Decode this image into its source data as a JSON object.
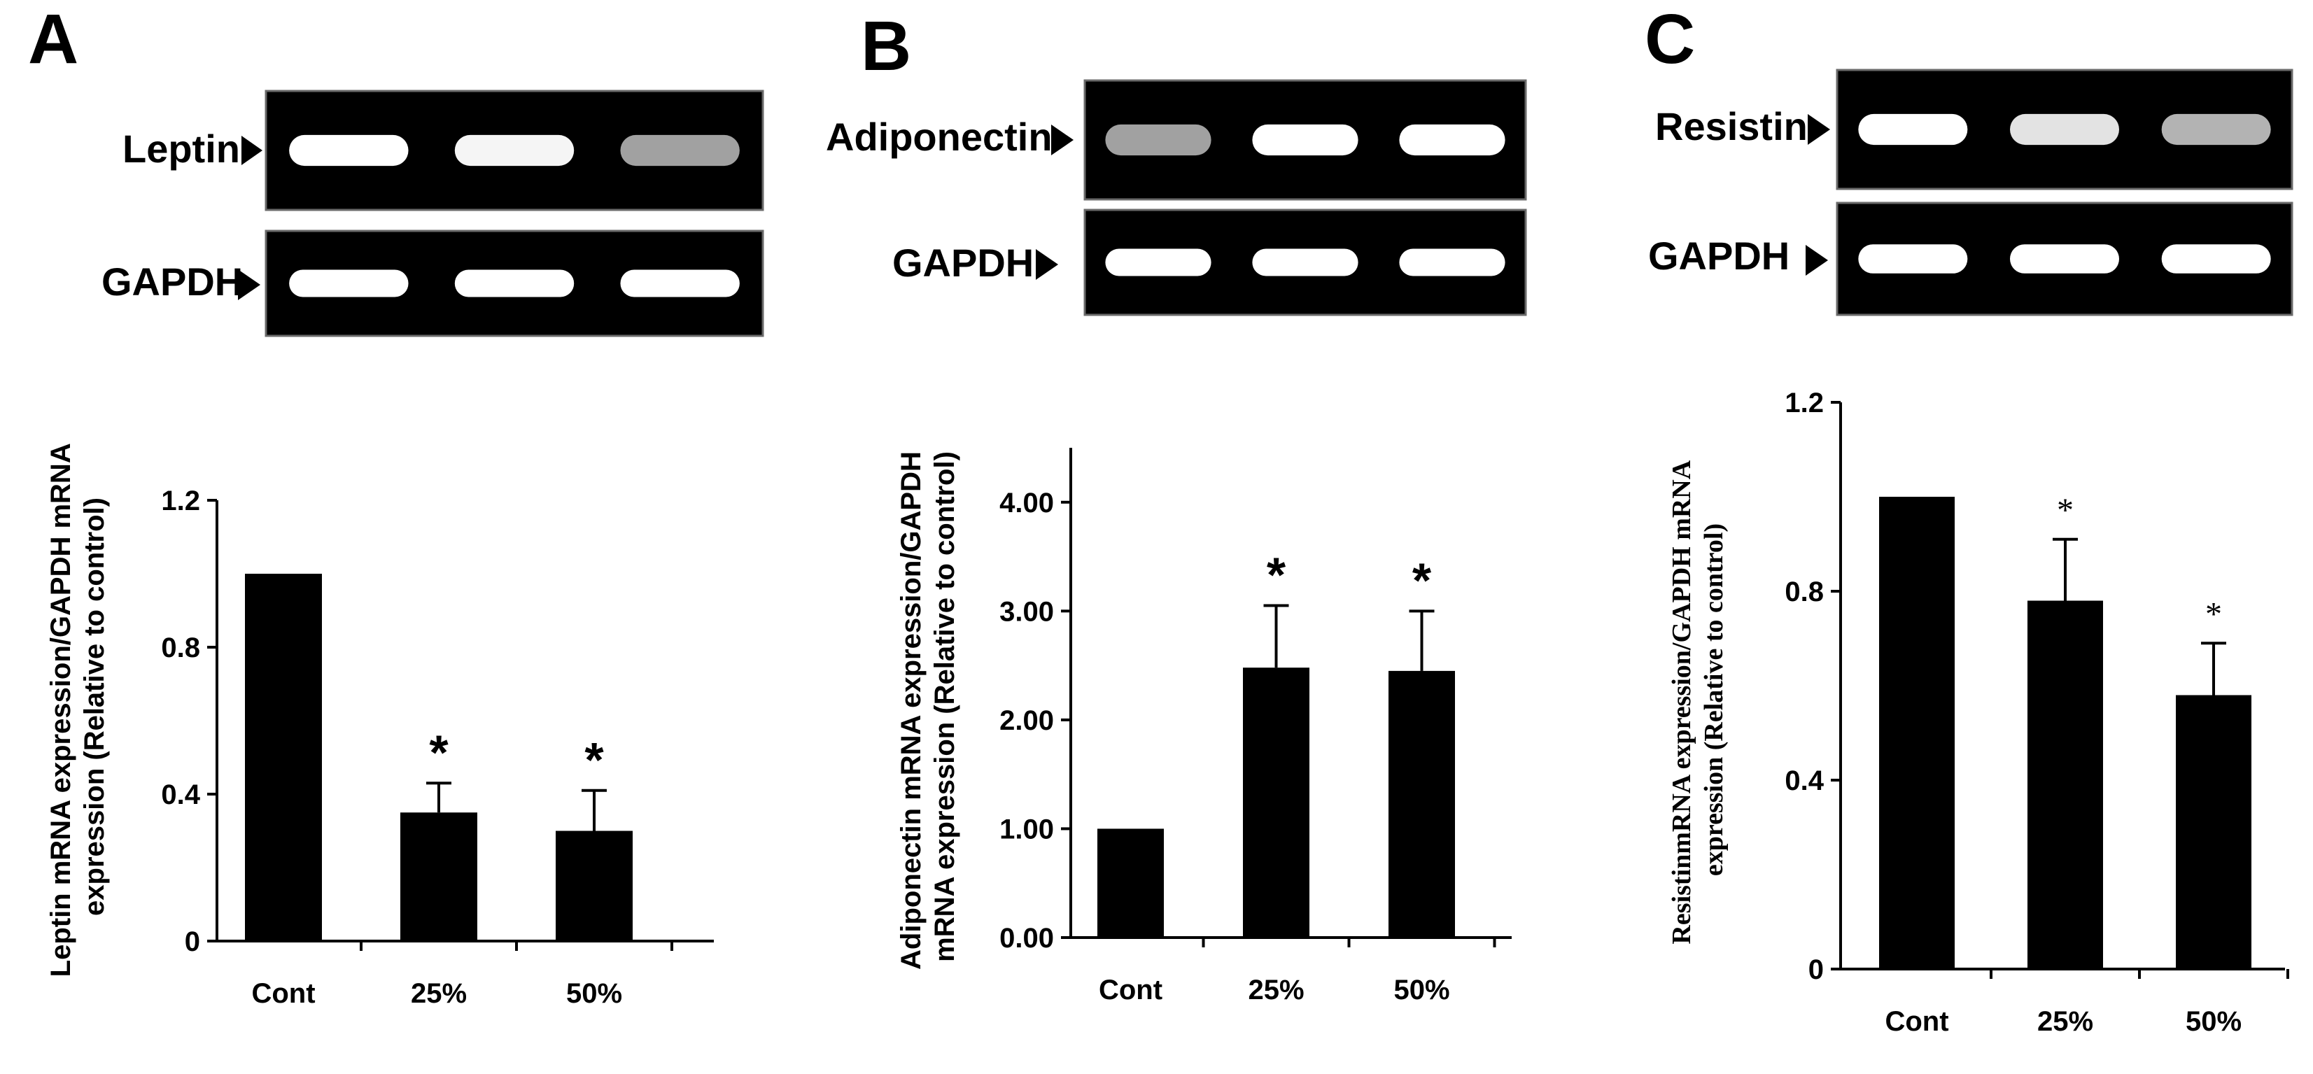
{
  "colors": {
    "bar": "#000000",
    "gel": "#000000",
    "band": "#ffffff"
  },
  "icons": {
    "band_marker": "triangle-arrow-icon"
  },
  "chart_data": [
    {
      "type": "bar",
      "panel_letter": "A",
      "gel_labels": [
        "Leptin",
        "GAPDH"
      ],
      "gel_band_intensity": [
        [
          1.0,
          0.95,
          0.5
        ],
        [
          1.0,
          1.0,
          1.0
        ]
      ],
      "categories": [
        "Cont",
        "25%",
        "50%"
      ],
      "values": [
        1.0,
        0.35,
        0.3
      ],
      "errors": [
        0,
        0.08,
        0.11
      ],
      "significance": [
        "",
        "*",
        "*"
      ],
      "ylabel_lines": [
        "Leptin mRNA expression/GAPDH mRNA",
        "expression (Relative to control)"
      ],
      "yticks": [
        0,
        0.4,
        0.8,
        1.2
      ],
      "ytick_labels": [
        "0",
        "0.4",
        "0.8",
        "1.2"
      ],
      "ylim": [
        0,
        1.2
      ]
    },
    {
      "type": "bar",
      "panel_letter": "B",
      "gel_labels": [
        "Adiponectin",
        "GAPDH"
      ],
      "gel_band_intensity": [
        [
          0.5,
          1.0,
          1.0
        ],
        [
          1.0,
          1.0,
          1.0
        ]
      ],
      "categories": [
        "Cont",
        "25%",
        "50%"
      ],
      "values": [
        1.0,
        2.48,
        2.45
      ],
      "errors": [
        0,
        0.57,
        0.55
      ],
      "significance": [
        "",
        "*",
        "*"
      ],
      "ylabel_lines": [
        "Adiponectin  mRNA expression/GAPDH",
        "mRNA  expression (Relative to control)"
      ],
      "yticks": [
        0,
        1,
        2,
        3,
        4
      ],
      "ytick_labels": [
        "0.00",
        "1.00",
        "2.00",
        "3.00",
        "4.00"
      ],
      "ylim": [
        0,
        4.5
      ]
    },
    {
      "type": "bar",
      "panel_letter": "C",
      "gel_labels": [
        "Resistin",
        "GAPDH"
      ],
      "gel_band_intensity": [
        [
          1.0,
          0.85,
          0.6
        ],
        [
          1.0,
          1.0,
          1.0
        ]
      ],
      "categories": [
        "Cont",
        "25%",
        "50%"
      ],
      "values": [
        1.0,
        0.78,
        0.58
      ],
      "errors": [
        0,
        0.13,
        0.11
      ],
      "significance": [
        "",
        "*",
        "*"
      ],
      "ylabel_lines": [
        "ResistinmRNA expression/GAPDH mRNA",
        "expression (Relative to control)"
      ],
      "yticks": [
        0,
        0.4,
        0.8,
        1.2
      ],
      "ytick_labels": [
        "0",
        "0.4",
        "0.8",
        "1.2"
      ],
      "ylim": [
        0,
        1.2
      ]
    }
  ]
}
